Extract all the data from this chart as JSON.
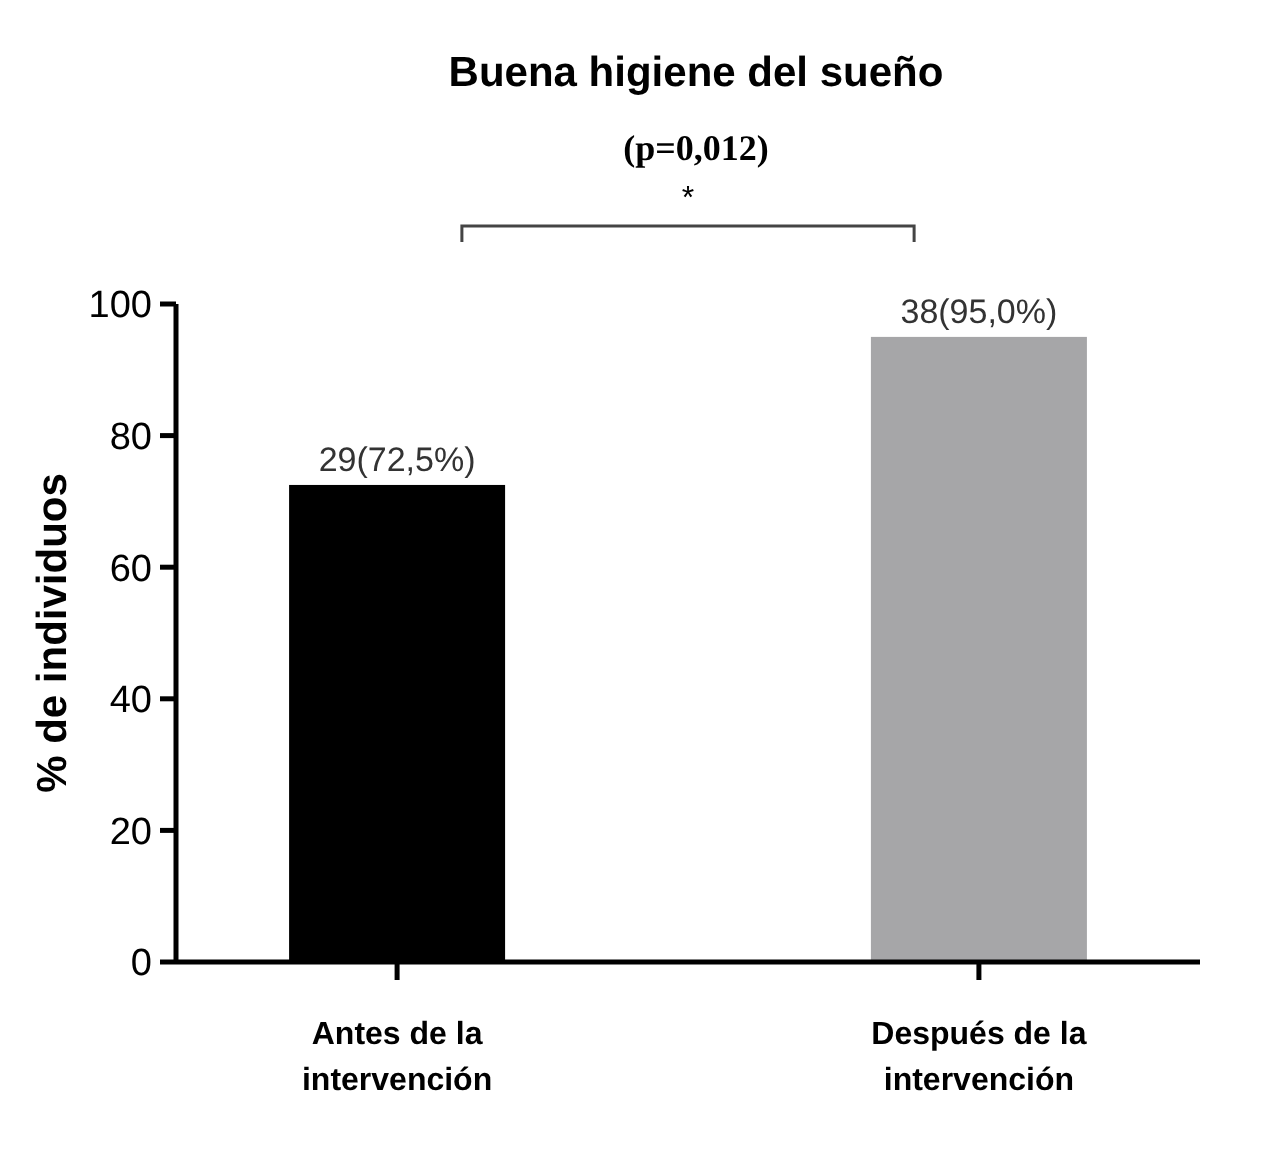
{
  "chart_data": {
    "type": "bar",
    "title": "Buena higiene del sueño",
    "ylabel": "% de individuos",
    "categories": [
      "Antes de la intervención",
      "Después de la intervención"
    ],
    "values": [
      72.5,
      95.0
    ],
    "colors": [
      "#000000",
      "#a6a6a8"
    ],
    "value_labels": [
      "29(72,5%)",
      "38(95,0%)"
    ],
    "ylim": [
      0,
      100
    ],
    "yticks": [
      0,
      20,
      40,
      60,
      80,
      100
    ],
    "grid": false,
    "annotations": [
      "(p=0,012)",
      "*"
    ]
  }
}
